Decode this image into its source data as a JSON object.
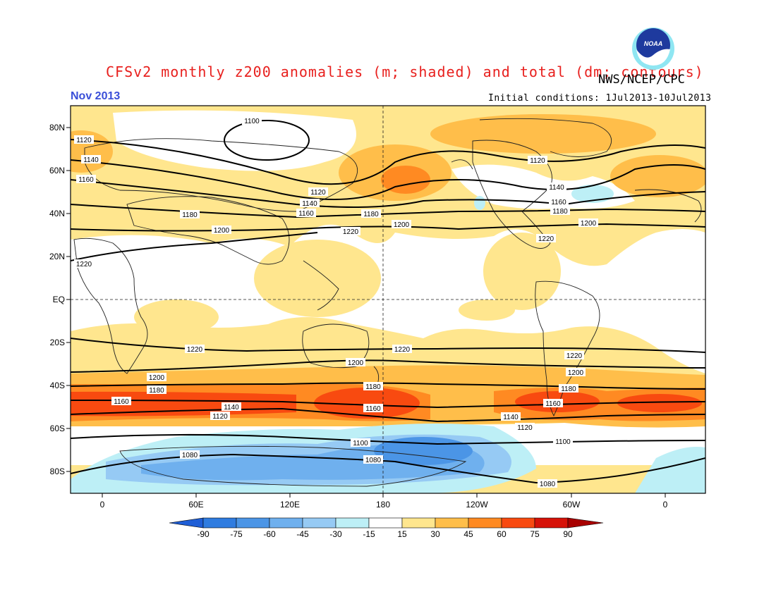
{
  "header": {
    "title": "CFSv2 monthly z200 anomalies (m; shaded) and total (dm; contours)",
    "agency": "NWS/NCEP/CPC",
    "month": "Nov 2013",
    "initial_conditions": "Initial conditions: 1Jul2013-10Jul2013",
    "logo_text": "NOAA",
    "title_color": "#e8201e",
    "month_color": "#3a4fd8"
  },
  "map": {
    "lat_labels": [
      "80N",
      "60N",
      "40N",
      "20N",
      "EQ",
      "20S",
      "40S",
      "60S",
      "80S"
    ],
    "lon_labels": [
      "0",
      "60E",
      "120E",
      "180",
      "120W",
      "60W",
      "0"
    ]
  },
  "colorbar": {
    "labels": [
      "-90",
      "-75",
      "-60",
      "-45",
      "-30",
      "-15",
      "15",
      "30",
      "45",
      "60",
      "75",
      "90"
    ],
    "colors": [
      "#1f5ed6",
      "#2f7ce0",
      "#4b95e6",
      "#6fb0ee",
      "#96caf4",
      "#bdeff6",
      "#ffffff",
      "#ffe68e",
      "#ffbe4a",
      "#ff8a22",
      "#f84a10",
      "#d61208",
      "#a80000"
    ]
  },
  "contour_labels": {
    "z1100": "1100",
    "z1120": "1120",
    "z1140": "1140",
    "z1160": "1160",
    "z1180": "1180",
    "z1200": "1200",
    "z1220": "1220",
    "z1080": "1080"
  }
}
